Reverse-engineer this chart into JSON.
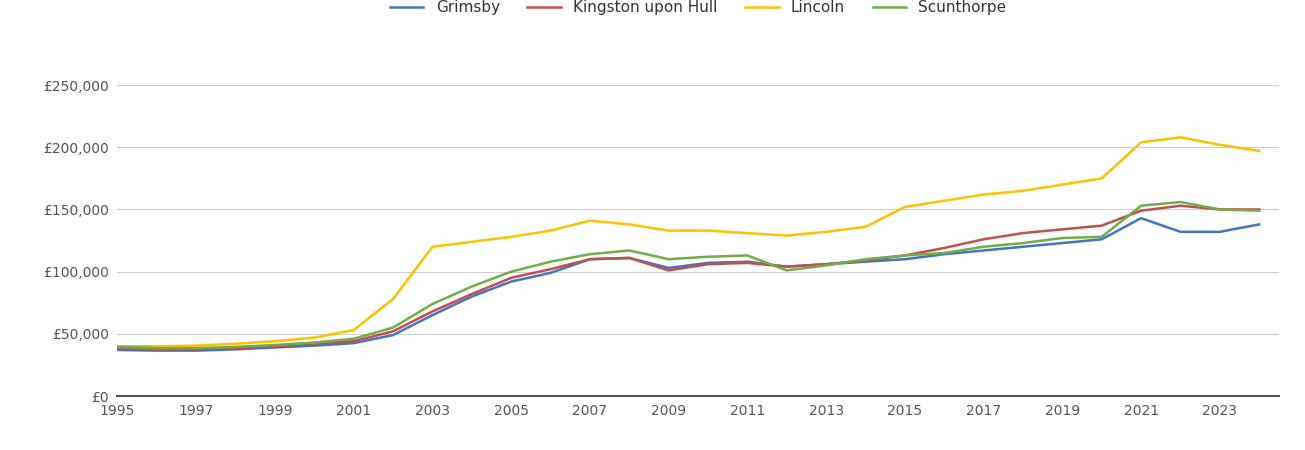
{
  "years": [
    1995,
    1996,
    1997,
    1998,
    1999,
    2000,
    2001,
    2002,
    2003,
    2004,
    2005,
    2006,
    2007,
    2008,
    2009,
    2010,
    2011,
    2012,
    2013,
    2014,
    2015,
    2016,
    2017,
    2018,
    2019,
    2020,
    2021,
    2022,
    2023,
    2024
  ],
  "grimsby": [
    37000,
    36500,
    36500,
    37500,
    39000,
    40500,
    42500,
    49000,
    65000,
    80000,
    92000,
    99000,
    110000,
    111000,
    103000,
    107000,
    108000,
    104000,
    106000,
    108000,
    110000,
    114000,
    117000,
    120000,
    123000,
    126000,
    143000,
    132000,
    132000,
    138000
  ],
  "kingston": [
    38000,
    37500,
    37500,
    38500,
    40000,
    42000,
    44000,
    52000,
    68000,
    82000,
    95000,
    102000,
    110000,
    111000,
    101000,
    106000,
    107000,
    104000,
    106000,
    109000,
    113000,
    119000,
    126000,
    131000,
    134000,
    137000,
    149000,
    153000,
    150000,
    150000
  ],
  "lincoln": [
    40000,
    40000,
    40500,
    42000,
    44000,
    47000,
    53000,
    78000,
    120000,
    124000,
    128000,
    133000,
    141000,
    138000,
    133000,
    133000,
    131000,
    129000,
    132000,
    136000,
    152000,
    157000,
    162000,
    165000,
    170000,
    175000,
    204000,
    208000,
    202000,
    197000
  ],
  "scunthorpe": [
    39500,
    38500,
    38500,
    39500,
    41000,
    43000,
    46000,
    55000,
    74000,
    88000,
    100000,
    108000,
    114000,
    117000,
    110000,
    112000,
    113000,
    101000,
    105000,
    110000,
    113000,
    115000,
    120000,
    123000,
    127000,
    128000,
    153000,
    156000,
    150000,
    149000
  ],
  "colors": {
    "grimsby": "#4472C4",
    "kingston": "#C0504D",
    "lincoln": "#FFC000",
    "scunthorpe": "#70AD47"
  },
  "ylim": [
    0,
    275000
  ],
  "yticks": [
    0,
    50000,
    100000,
    150000,
    200000,
    250000
  ],
  "ytick_labels": [
    "£0",
    "£50,000",
    "£100,000",
    "£150,000",
    "£200,000",
    "£250,000"
  ],
  "legend_labels": [
    "Grimsby",
    "Kingston upon Hull",
    "Lincoln",
    "Scunthorpe"
  ],
  "background_color": "#ffffff",
  "grid_color": "#d0d0d0"
}
